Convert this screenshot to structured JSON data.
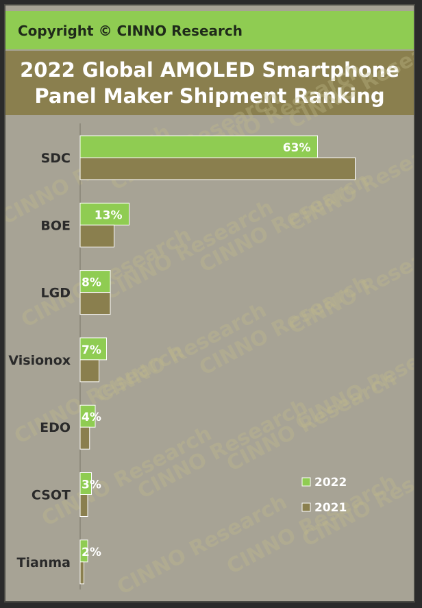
{
  "copyright": "Copyright © CINNO Research",
  "title_line_1": "2022 Global AMOLED Smartphone",
  "title_line_2": "Panel Maker Shipment Ranking",
  "watermark_text": "CINNO Research",
  "colors": {
    "series_2022": "#8fcc52",
    "series_2021": "#8a7f4e",
    "background": "#a7a395",
    "header_green": "#8fcc52",
    "title_olive": "#8a7f4e"
  },
  "chart_data": {
    "type": "bar",
    "orientation": "horizontal",
    "title": "2022 Global AMOLED Smartphone Panel Maker Shipment Ranking",
    "categories": [
      "SDC",
      "BOE",
      "LGD",
      "Visionox",
      "EDO",
      "CSOT",
      "Tianma"
    ],
    "series": [
      {
        "name": "2022",
        "values": [
          63,
          13,
          8,
          7,
          4,
          3,
          2
        ],
        "labels": [
          "63%",
          "13%",
          "8%",
          "7%",
          "4%",
          "3%",
          "2%"
        ]
      },
      {
        "name": "2021",
        "values": [
          73,
          9,
          8,
          5,
          2.5,
          2,
          1
        ]
      }
    ],
    "xlim": [
      0,
      80
    ],
    "value_unit": "%",
    "grid": false,
    "legend_position": "bottom-right"
  }
}
